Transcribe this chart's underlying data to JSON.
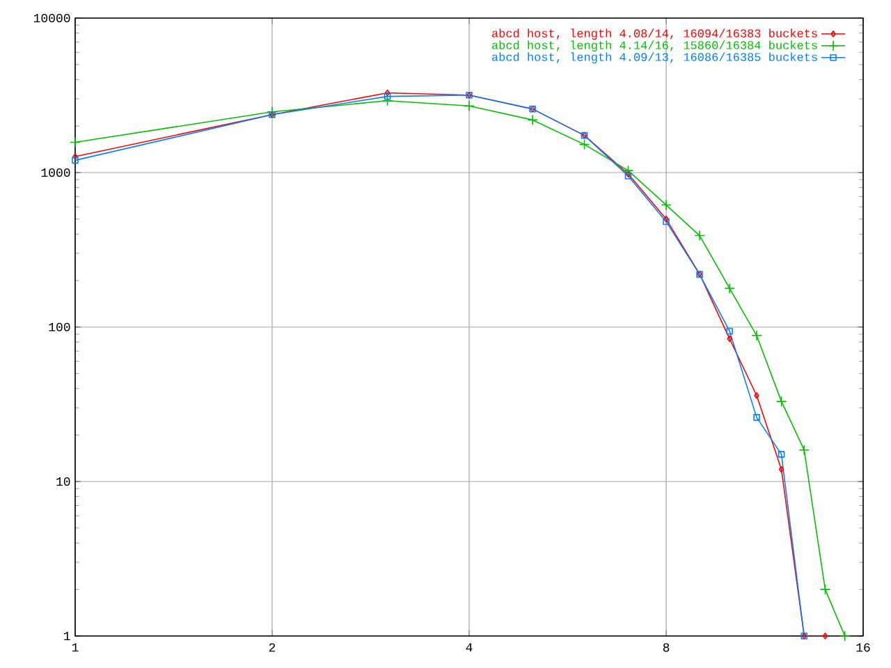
{
  "chart_data": {
    "type": "line",
    "log": "xy",
    "grid": true,
    "legend": "top right",
    "line_style": "solid",
    "xlim": [
      1,
      16
    ],
    "xticks": [
      1,
      2,
      4,
      8,
      16
    ],
    "ylim": [
      1,
      10000
    ],
    "yticks": [
      1,
      10,
      100,
      1000,
      10000
    ],
    "series": [
      {
        "name": "abcd host, length 4.08/14, 16094/16383 buckets",
        "color": "#ff0000",
        "marker": "diamond",
        "x": [
          1,
          2,
          3,
          4,
          5,
          6,
          7,
          8,
          9,
          10,
          11,
          12,
          13,
          14
        ],
        "values": [
          1270,
          2370,
          3280,
          3170,
          2580,
          1740,
          980,
          500,
          220,
          84,
          36,
          12,
          1,
          1
        ]
      },
      {
        "name": "abcd host, length 4.14/16, 15860/16384 buckets",
        "color": "#00c000",
        "marker": "cross",
        "x": [
          1,
          2,
          3,
          4,
          5,
          6,
          7,
          8,
          9,
          10,
          11,
          12,
          13,
          14,
          15
        ],
        "values": [
          1570,
          2470,
          2920,
          2700,
          2190,
          1520,
          1030,
          617,
          391,
          178,
          88,
          33,
          16,
          2,
          1
        ]
      },
      {
        "name": "abcd host, length 4.09/13, 16086/16385 buckets",
        "color": "#0080ff",
        "marker": "square",
        "x": [
          1,
          2,
          3,
          4,
          5,
          6,
          7,
          8,
          9,
          10,
          11,
          12,
          13
        ],
        "values": [
          1200,
          2370,
          3110,
          3170,
          2580,
          1740,
          950,
          481,
          219,
          94,
          26,
          15,
          1
        ]
      }
    ]
  }
}
